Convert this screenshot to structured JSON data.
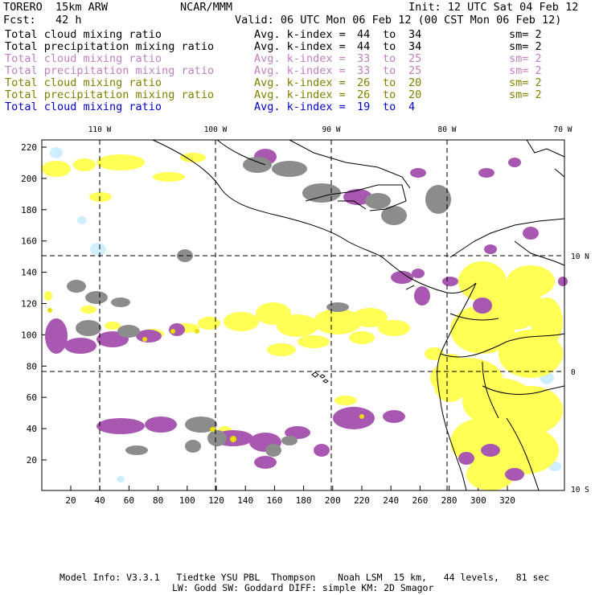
{
  "header": {
    "model": "TORERO  15km ARW",
    "org": "NCAR/MMM",
    "init": "Init: 12 UTC Sat 04 Feb 12",
    "fcst": "Fcst:   42 h",
    "valid": "Valid: 06 UTC Mon 06 Feb 12 (00 CST Mon 06 Feb 12)"
  },
  "legend_rows": [
    {
      "field": "Total cloud mixing ratio",
      "index": "Avg. k-index =",
      "hi": "44",
      "to": "to",
      "lo": "34",
      "sm": "sm= 2",
      "color": "#000000"
    },
    {
      "field": "Total precipitation mixing ratio",
      "index": "Avg. k-index =",
      "hi": "44",
      "to": "to",
      "lo": "34",
      "sm": "sm= 2",
      "color": "#000000"
    },
    {
      "field": "Total cloud mixing ratio",
      "index": "Avg. k-index =",
      "hi": "33",
      "to": "to",
      "lo": "25",
      "sm": "sm= 2",
      "color": "#c080c0"
    },
    {
      "field": "Total precipitation mixing ratio",
      "index": "Avg. k-index =",
      "hi": "33",
      "to": "to",
      "lo": "25",
      "sm": "sm= 2",
      "color": "#c080c0"
    },
    {
      "field": "Total cloud mixing ratio",
      "index": "Avg. k-index =",
      "hi": "26",
      "to": "to",
      "lo": "20",
      "sm": "sm= 2",
      "color": "#808000"
    },
    {
      "field": "Total precipitation mixing ratio",
      "index": "Avg. k-index =",
      "hi": "26",
      "to": "to",
      "lo": "20",
      "sm": "sm= 2",
      "color": "#808000"
    },
    {
      "field": "Total cloud mixing ratio",
      "index": "Avg. k-index =",
      "hi": "19",
      "to": "to",
      "lo": "4",
      "sm": "",
      "color": "#0000cc"
    }
  ],
  "map": {
    "lon_labels": [
      "110 W",
      "100 W",
      "90 W",
      "80 W",
      "70 W"
    ],
    "lat_labels": [
      "10 N",
      "0",
      "10 S"
    ],
    "x_ticks": [
      "20",
      "40",
      "60",
      "80",
      "100",
      "120",
      "140",
      "160",
      "180",
      "200",
      "220",
      "240",
      "260",
      "280",
      "300",
      "320"
    ],
    "y_ticks": [
      "20",
      "40",
      "60",
      "80",
      "100",
      "120",
      "140",
      "160",
      "180",
      "200",
      "220"
    ],
    "colors": {
      "cloud_high": "#8c8c8c",
      "precip_high": "#a858b0",
      "cloud_mid": "#ffff55",
      "precip_mid": "#e8e000",
      "cloud_low": "#cfeeff",
      "coast": "#000000",
      "grid": "#000000"
    }
  },
  "footer": {
    "line1": "Model Info: V3.3.1   Tiedtke YSU PBL  Thompson    Noah LSM  15 km,   44 levels,   81 sec",
    "line2": "LW: Godd SW: Goddard DIFF: simple KM: 2D Smagor"
  }
}
